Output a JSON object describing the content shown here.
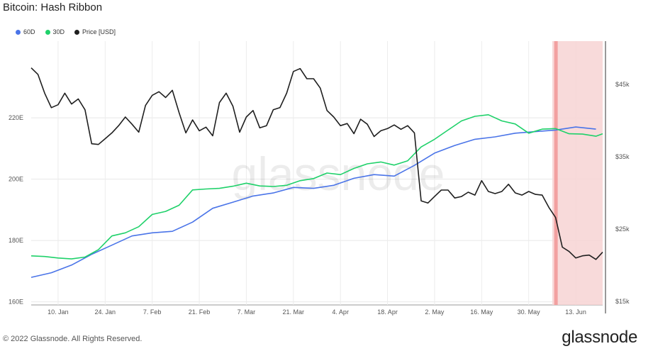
{
  "header": {
    "title": "Bitcoin: Hash Ribbon"
  },
  "footer": {
    "copyright": "© 2022 Glassnode. All Rights Reserved.",
    "brand": "glassnode"
  },
  "watermark": "glassnode",
  "colors": {
    "sma60": "#4a74e8",
    "sma30": "#1fd16a",
    "price": "#1f1f1f",
    "capitulation": "#f7d4d4",
    "capitulation_line": "#f2a0a0"
  },
  "chart_data": {
    "type": "line",
    "title": "Bitcoin: Hash Ribbon",
    "grid": true,
    "legend_position": "top-left",
    "x_ticks": [
      "10. Jan",
      "24. Jan",
      "7. Feb",
      "21. Feb",
      "7. Mar",
      "21. Mar",
      "4. Apr",
      "18. Apr",
      "2. May",
      "16. May",
      "30. May",
      "13. Jun"
    ],
    "x_tick_days": [
      10,
      24,
      38,
      52,
      66,
      80,
      94,
      108,
      122,
      136,
      150,
      164
    ],
    "x_range": [
      2,
      172
    ],
    "left_axis": {
      "ticks": [
        "160E",
        "180E",
        "200E",
        "220E"
      ],
      "tick_values": [
        160,
        180,
        200,
        220
      ],
      "range": [
        159,
        245
      ]
    },
    "right_axis": {
      "ticks": [
        "$15k",
        "$25k",
        "$35k",
        "$45k"
      ],
      "tick_values": [
        15,
        25,
        35,
        45
      ],
      "range": [
        14.5,
        51
      ]
    },
    "shaded_region": {
      "x_start": 157,
      "x_end": 172,
      "marker_x": 158
    },
    "series": [
      {
        "name": "60D",
        "color": "#4a74e8",
        "axis": "left",
        "x": [
          2,
          8,
          14,
          20,
          26,
          32,
          38,
          44,
          50,
          56,
          62,
          68,
          74,
          80,
          86,
          92,
          98,
          104,
          110,
          116,
          122,
          128,
          134,
          140,
          146,
          152,
          158,
          164,
          170
        ],
        "y": [
          168,
          169.5,
          172,
          175.5,
          178.5,
          181.5,
          182.5,
          183,
          186,
          190.5,
          192.5,
          194.5,
          195.5,
          197.3,
          197,
          198,
          200.3,
          201.5,
          201,
          204.5,
          208.5,
          211,
          213,
          213.8,
          215,
          215.5,
          216,
          217,
          216.3
        ]
      },
      {
        "name": "30D",
        "color": "#1fd16a",
        "axis": "left",
        "x": [
          2,
          6,
          10,
          14,
          18,
          22,
          26,
          30,
          34,
          38,
          42,
          46,
          50,
          54,
          58,
          62,
          66,
          70,
          74,
          78,
          82,
          86,
          90,
          94,
          98,
          102,
          106,
          110,
          114,
          118,
          122,
          126,
          130,
          134,
          138,
          142,
          146,
          150,
          154,
          158,
          162,
          166,
          170,
          172
        ],
        "y": [
          175,
          174.8,
          174.3,
          174,
          174.6,
          177,
          181.5,
          182.5,
          184.5,
          188.5,
          189.5,
          191.5,
          196.5,
          196.8,
          197,
          197.7,
          198.7,
          197.8,
          197.6,
          198,
          199.5,
          200.2,
          202,
          201.5,
          203.5,
          205,
          205.6,
          204.6,
          206,
          210.5,
          213,
          216,
          219,
          220.5,
          221,
          219,
          218,
          215,
          216.3,
          216.5,
          214.8,
          214.7,
          214,
          214.8
        ]
      },
      {
        "name": "Price [USD]",
        "color": "#1f1f1f",
        "axis": "right",
        "x": [
          2,
          4,
          6,
          8,
          10,
          12,
          14,
          16,
          18,
          20,
          22,
          24,
          26,
          28,
          30,
          32,
          34,
          36,
          38,
          40,
          42,
          44,
          46,
          48,
          50,
          52,
          54,
          56,
          58,
          60,
          62,
          64,
          66,
          68,
          70,
          72,
          74,
          76,
          78,
          80,
          82,
          84,
          86,
          88,
          90,
          92,
          94,
          96,
          98,
          100,
          102,
          104,
          106,
          108,
          110,
          112,
          114,
          116,
          118,
          120,
          122,
          124,
          126,
          128,
          130,
          132,
          134,
          136,
          138,
          140,
          142,
          144,
          146,
          148,
          150,
          152,
          154,
          156,
          158,
          160,
          162,
          164,
          166,
          168,
          170,
          172
        ],
        "y": [
          47.3,
          46.4,
          43.8,
          41.8,
          42.2,
          43.8,
          42.3,
          43,
          41.5,
          36.8,
          36.7,
          37.5,
          38.3,
          39.3,
          40.5,
          39.5,
          38.4,
          42.1,
          43.5,
          44,
          43.2,
          44.2,
          41.1,
          38.3,
          40.1,
          38.6,
          39.1,
          37.9,
          42.5,
          43.8,
          42,
          38.4,
          40.5,
          41.4,
          39,
          39.3,
          41.5,
          41.8,
          43.8,
          46.8,
          47.2,
          45.8,
          45.8,
          44.5,
          41.4,
          40.5,
          39.3,
          39.6,
          38.2,
          40.2,
          39.5,
          37.8,
          38.6,
          38.9,
          39.4,
          38.8,
          39.3,
          38.3,
          28.9,
          28.6,
          29.5,
          30.4,
          30.4,
          29.3,
          29.5,
          30.1,
          29.7,
          31.7,
          30.2,
          29.9,
          30.2,
          31.2,
          30,
          29.7,
          30.2,
          29.8,
          29.7,
          28,
          26.6,
          22.5,
          21.9,
          21,
          21.3,
          21.4,
          20.8,
          21.8
        ]
      }
    ]
  }
}
